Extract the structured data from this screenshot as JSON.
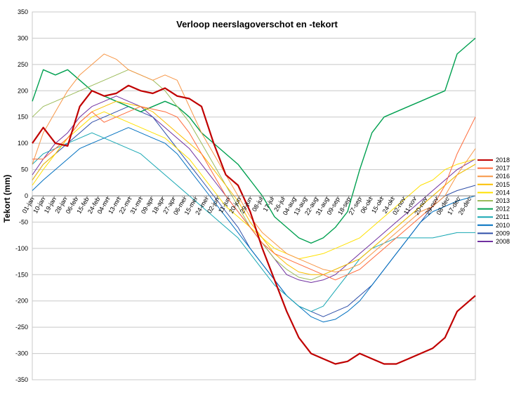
{
  "chart_data": {
    "type": "line",
    "title": "Verloop neerslagoverschot en -tekort",
    "xlabel": "",
    "ylabel": "Tekort (mm)",
    "ylim": [
      -350,
      350
    ],
    "yticks": [
      -350,
      -300,
      -250,
      -200,
      -150,
      -100,
      -50,
      0,
      50,
      100,
      150,
      200,
      250,
      300,
      350
    ],
    "grid": true,
    "legend_position": "right",
    "x_axis_at_y": 0,
    "x_tick_labels": [
      "01-jan",
      "10-jan",
      "19-jan",
      "28-jan",
      "06-feb",
      "15-feb",
      "24-feb",
      "04-mrt",
      "13-mrt",
      "22-mrt",
      "31-mrt",
      "09-apr",
      "18-apr",
      "27-apr",
      "06-mei",
      "15-mei",
      "24-mei",
      "02-jun",
      "11-jun",
      "20-jun",
      "29-jun",
      "08-jul",
      "17-jul",
      "26-jul",
      "04-aug",
      "13-aug",
      "22-aug",
      "31-aug",
      "09-sep",
      "18-sep",
      "27-sep",
      "06-okt",
      "15-okt",
      "24-okt",
      "02-nov",
      "11-nov",
      "20-nov",
      "29-nov",
      "08-dec",
      "17-dec",
      "26-dec"
    ],
    "x_tick_days": [
      1,
      10,
      19,
      28,
      37,
      46,
      55,
      63,
      72,
      81,
      90,
      99,
      108,
      117,
      126,
      135,
      144,
      153,
      162,
      171,
      180,
      189,
      198,
      207,
      216,
      225,
      234,
      243,
      252,
      261,
      270,
      279,
      288,
      297,
      306,
      315,
      324,
      333,
      342,
      351,
      360
    ],
    "x_range_days": [
      1,
      365
    ],
    "series_days": [
      1,
      10,
      20,
      30,
      40,
      50,
      60,
      70,
      80,
      90,
      100,
      110,
      120,
      130,
      140,
      150,
      160,
      170,
      180,
      190,
      200,
      210,
      220,
      230,
      240,
      250,
      260,
      270,
      280,
      290,
      300,
      310,
      320,
      330,
      340,
      350,
      365
    ],
    "series": [
      {
        "name": "2018",
        "color": "#c00000",
        "width": 2.2,
        "values": [
          100,
          130,
          100,
          95,
          170,
          200,
          190,
          195,
          210,
          200,
          195,
          205,
          190,
          185,
          170,
          100,
          40,
          20,
          -30,
          -100,
          -160,
          -220,
          -270,
          -300,
          -310,
          -320,
          -315,
          -300,
          -310,
          -320,
          -320,
          -310,
          -300,
          -290,
          -270,
          -220,
          -190
        ]
      },
      {
        "name": "2017",
        "color": "#ff6a3a",
        "width": 1,
        "values": [
          70,
          70,
          90,
          110,
          140,
          160,
          140,
          150,
          160,
          170,
          165,
          160,
          150,
          120,
          80,
          40,
          0,
          -30,
          -60,
          -90,
          -110,
          -120,
          -130,
          -140,
          -150,
          -160,
          -150,
          -140,
          -120,
          -100,
          -80,
          -60,
          -40,
          -20,
          20,
          80,
          150
        ]
      },
      {
        "name": "2016",
        "color": "#f79646",
        "width": 1,
        "values": [
          60,
          120,
          160,
          200,
          230,
          250,
          270,
          260,
          240,
          230,
          220,
          230,
          220,
          170,
          120,
          80,
          40,
          0,
          -40,
          -70,
          -90,
          -110,
          -120,
          -130,
          -140,
          -145,
          -140,
          -130,
          -110,
          -90,
          -70,
          -50,
          -30,
          -20,
          0,
          40,
          90
        ]
      },
      {
        "name": "2015",
        "color": "#fbbf00",
        "width": 1,
        "values": [
          30,
          60,
          80,
          110,
          140,
          160,
          170,
          180,
          175,
          170,
          160,
          140,
          120,
          100,
          80,
          50,
          20,
          -10,
          -50,
          -80,
          -110,
          -130,
          -145,
          -150,
          -150,
          -140,
          -130,
          -120,
          -100,
          -80,
          -60,
          -40,
          -20,
          0,
          20,
          40,
          60
        ]
      },
      {
        "name": "2014",
        "color": "#ffe100",
        "width": 1,
        "values": [
          20,
          50,
          80,
          110,
          130,
          150,
          160,
          150,
          140,
          130,
          120,
          110,
          90,
          70,
          40,
          10,
          -20,
          -40,
          -60,
          -80,
          -100,
          -110,
          -120,
          -115,
          -110,
          -100,
          -90,
          -80,
          -60,
          -40,
          -20,
          0,
          20,
          30,
          50,
          60,
          70
        ]
      },
      {
        "name": "2013",
        "color": "#9bbb59",
        "width": 1,
        "values": [
          150,
          170,
          180,
          190,
          200,
          210,
          220,
          230,
          240,
          230,
          220,
          200,
          170,
          140,
          100,
          60,
          20,
          -20,
          -60,
          -90,
          -120,
          -140,
          -155,
          -160,
          -150,
          -140,
          -130,
          -120,
          -100,
          -80,
          -60,
          -40,
          -20,
          0,
          20,
          40,
          60
        ]
      },
      {
        "name": "2012",
        "color": "#00a050",
        "width": 1.4,
        "values": [
          180,
          240,
          230,
          240,
          220,
          200,
          190,
          180,
          170,
          160,
          170,
          180,
          170,
          150,
          120,
          100,
          80,
          60,
          30,
          0,
          -40,
          -60,
          -80,
          -90,
          -80,
          -60,
          -30,
          50,
          120,
          150,
          160,
          170,
          180,
          190,
          200,
          270,
          300
        ]
      },
      {
        "name": "2011",
        "color": "#17a7b3",
        "width": 1,
        "values": [
          60,
          80,
          90,
          100,
          110,
          120,
          110,
          100,
          90,
          80,
          60,
          40,
          20,
          0,
          -20,
          -40,
          -60,
          -80,
          -110,
          -140,
          -170,
          -190,
          -210,
          -220,
          -210,
          -180,
          -150,
          -120,
          -100,
          -90,
          -80,
          -80,
          -80,
          -80,
          -75,
          -70,
          -70
        ]
      },
      {
        "name": "2010",
        "color": "#0070c0",
        "width": 1,
        "values": [
          10,
          30,
          50,
          70,
          90,
          100,
          110,
          120,
          130,
          120,
          110,
          100,
          80,
          50,
          20,
          -10,
          -40,
          -70,
          -100,
          -130,
          -160,
          -190,
          -210,
          -230,
          -240,
          -235,
          -220,
          -200,
          -170,
          -140,
          -110,
          -80,
          -50,
          -30,
          -20,
          -10,
          0
        ]
      },
      {
        "name": "2009",
        "color": "#2e4ea8",
        "width": 1,
        "values": [
          30,
          60,
          80,
          100,
          120,
          140,
          150,
          160,
          170,
          160,
          150,
          120,
          90,
          60,
          30,
          0,
          -30,
          -60,
          -100,
          -130,
          -160,
          -190,
          -210,
          -220,
          -230,
          -220,
          -210,
          -190,
          -170,
          -140,
          -110,
          -80,
          -50,
          -20,
          0,
          10,
          20
        ]
      },
      {
        "name": "2008",
        "color": "#7030a0",
        "width": 1,
        "values": [
          40,
          70,
          100,
          120,
          150,
          170,
          180,
          190,
          180,
          170,
          150,
          130,
          110,
          90,
          60,
          30,
          0,
          -30,
          -60,
          -90,
          -120,
          -150,
          -160,
          -165,
          -160,
          -150,
          -130,
          -110,
          -90,
          -70,
          -50,
          -30,
          -10,
          10,
          30,
          50,
          70
        ]
      }
    ]
  }
}
